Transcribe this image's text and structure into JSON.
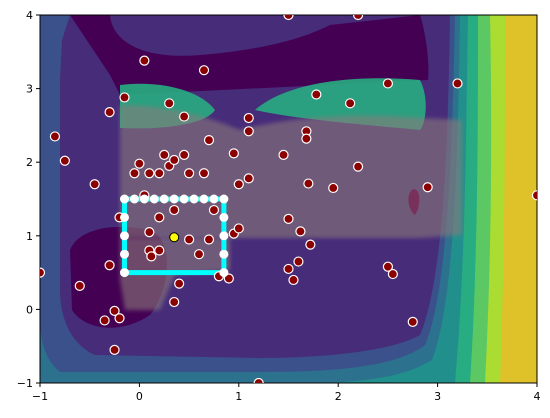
{
  "chart_data": {
    "type": "scatter",
    "title": "",
    "xlabel": "",
    "ylabel": "",
    "xlim": [
      -1,
      4
    ],
    "ylim": [
      -1,
      4
    ],
    "grid": false,
    "x_ticks": [
      "−1",
      "0",
      "1",
      "2",
      "3",
      "4"
    ],
    "y_ticks": [
      "−1",
      "0",
      "1",
      "2",
      "3",
      "4"
    ],
    "x_tick_values": [
      -1,
      0,
      1,
      2,
      3,
      4
    ],
    "y_tick_values": [
      -1,
      0,
      1,
      2,
      3,
      4
    ],
    "colors": {
      "contour_levels": [
        "#440154",
        "#472c7a",
        "#3b518b",
        "#2c718e",
        "#21908d",
        "#27ad81",
        "#5cc863",
        "#aadc32",
        "#dfc22a"
      ],
      "overlay": "#7a6a6f",
      "overlay_secondary": "#6f6a8a",
      "points_fill": "#8b0000",
      "points_edge": "#ffffff",
      "rectangle": "#00ffff",
      "marker_fill": "#ffff00",
      "marker_edge": "#000000"
    },
    "highlight_rectangle": {
      "x": [
        -0.15,
        0.85
      ],
      "y": [
        0.5,
        1.5
      ]
    },
    "highlight_point": {
      "x": 0.35,
      "y": 0.98
    },
    "boundary_points": [
      [
        -0.15,
        1.5
      ],
      [
        -0.05,
        1.5
      ],
      [
        0.05,
        1.5
      ],
      [
        0.15,
        1.5
      ],
      [
        0.25,
        1.5
      ],
      [
        0.35,
        1.5
      ],
      [
        0.45,
        1.5
      ],
      [
        0.55,
        1.5
      ],
      [
        0.65,
        1.5
      ],
      [
        0.75,
        1.5
      ],
      [
        0.85,
        1.5
      ],
      [
        -0.15,
        1.25
      ],
      [
        0.85,
        1.25
      ],
      [
        -0.15,
        1.0
      ],
      [
        0.85,
        1.0
      ],
      [
        -0.15,
        0.75
      ],
      [
        0.85,
        0.75
      ],
      [
        -0.15,
        0.5
      ],
      [
        0.85,
        0.5
      ]
    ],
    "points": [
      [
        -1.0,
        0.5
      ],
      [
        -0.85,
        2.35
      ],
      [
        -0.75,
        2.02
      ],
      [
        -0.6,
        0.32
      ],
      [
        -0.45,
        1.7
      ],
      [
        -0.35,
        -0.15
      ],
      [
        -0.3,
        2.68
      ],
      [
        -0.3,
        0.6
      ],
      [
        -0.25,
        -0.02
      ],
      [
        -0.2,
        -0.12
      ],
      [
        -0.25,
        -0.55
      ],
      [
        -0.2,
        1.25
      ],
      [
        -0.15,
        2.88
      ],
      [
        -0.05,
        1.85
      ],
      [
        0.0,
        1.98
      ],
      [
        0.05,
        1.55
      ],
      [
        0.05,
        3.38
      ],
      [
        0.1,
        1.85
      ],
      [
        0.1,
        1.05
      ],
      [
        0.1,
        0.8
      ],
      [
        0.2,
        1.85
      ],
      [
        0.2,
        1.25
      ],
      [
        0.2,
        0.8
      ],
      [
        0.25,
        2.1
      ],
      [
        0.3,
        1.95
      ],
      [
        0.3,
        2.8
      ],
      [
        0.35,
        2.03
      ],
      [
        0.35,
        1.35
      ],
      [
        0.35,
        0.1
      ],
      [
        0.4,
        0.35
      ],
      [
        0.45,
        2.62
      ],
      [
        0.45,
        2.1
      ],
      [
        0.5,
        1.85
      ],
      [
        0.5,
        0.95
      ],
      [
        0.6,
        0.75
      ],
      [
        0.65,
        3.25
      ],
      [
        0.65,
        1.85
      ],
      [
        0.7,
        2.3
      ],
      [
        0.7,
        0.95
      ],
      [
        0.75,
        1.35
      ],
      [
        0.8,
        0.45
      ],
      [
        0.9,
        0.42
      ],
      [
        0.95,
        2.12
      ],
      [
        0.95,
        1.03
      ],
      [
        1.0,
        1.1
      ],
      [
        1.0,
        1.7
      ],
      [
        1.1,
        2.6
      ],
      [
        1.1,
        2.42
      ],
      [
        1.1,
        1.78
      ],
      [
        1.2,
        -1.0
      ],
      [
        1.5,
        4.0
      ],
      [
        1.45,
        2.1
      ],
      [
        1.5,
        1.23
      ],
      [
        1.5,
        0.55
      ],
      [
        1.55,
        0.4
      ],
      [
        1.6,
        0.65
      ],
      [
        1.62,
        1.06
      ],
      [
        1.68,
        2.42
      ],
      [
        1.68,
        2.32
      ],
      [
        1.7,
        1.71
      ],
      [
        1.72,
        0.88
      ],
      [
        1.78,
        2.92
      ],
      [
        1.95,
        1.65
      ],
      [
        2.12,
        2.8
      ],
      [
        2.2,
        4.0
      ],
      [
        2.2,
        1.94
      ],
      [
        2.5,
        3.07
      ],
      [
        2.5,
        0.58
      ],
      [
        2.55,
        0.48
      ],
      [
        2.75,
        -0.17
      ],
      [
        2.9,
        1.66
      ],
      [
        3.2,
        3.07
      ],
      [
        4.0,
        1.55
      ],
      [
        0.12,
        0.72
      ]
    ]
  }
}
